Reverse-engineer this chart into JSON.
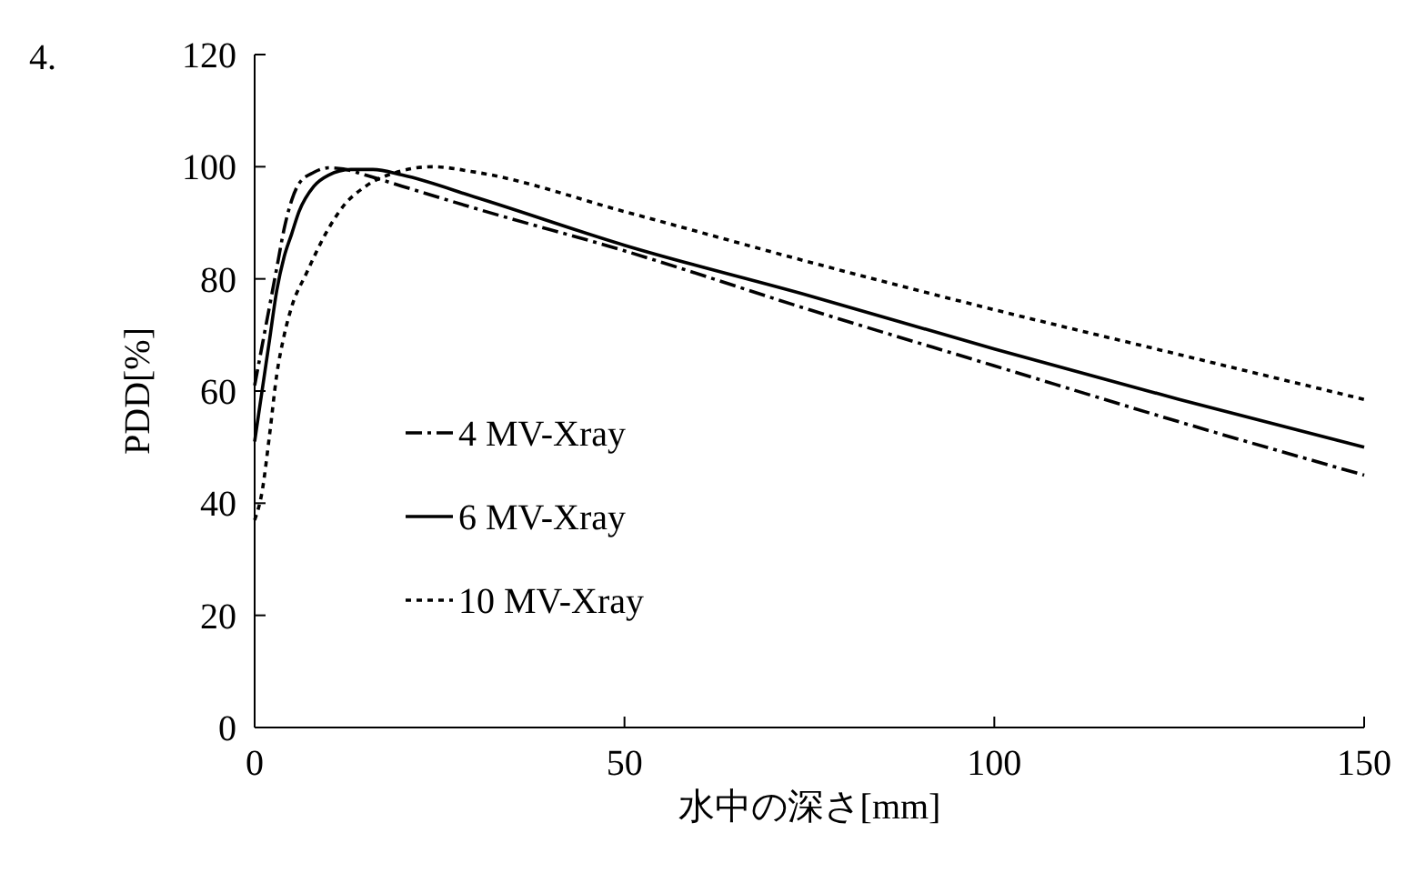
{
  "chart_data": {
    "type": "line",
    "title": "4.",
    "xlabel": "水中の深さ[mm]",
    "ylabel": "PDD[%]",
    "xlim": [
      0,
      150
    ],
    "xticks": [
      0,
      50,
      100,
      150
    ],
    "ylim": [
      0,
      120
    ],
    "yticks": [
      0,
      20,
      40,
      60,
      80,
      100,
      120
    ],
    "grid": false,
    "legend": "left",
    "marker": "none",
    "series": [
      {
        "name": "4 MV-Xray",
        "color": "#000000",
        "line_style": "dashdot",
        "x": [
          0,
          1,
          2,
          3,
          4,
          5,
          6,
          8,
          10,
          12,
          15,
          20,
          30,
          50,
          75,
          100,
          125,
          150
        ],
        "values": [
          61,
          68,
          75,
          82,
          89,
          94,
          97,
          99,
          99.8,
          99.6,
          98.5,
          96.5,
          92.5,
          85,
          74.5,
          64.5,
          54.5,
          45
        ]
      },
      {
        "name": "6 MV-Xray",
        "color": "#000000",
        "line_style": "solid",
        "x": [
          0,
          1,
          2,
          3,
          4,
          5,
          6,
          8,
          10,
          13,
          16,
          20,
          30,
          50,
          75,
          100,
          125,
          150
        ],
        "values": [
          51,
          60,
          69,
          78,
          84,
          88,
          92,
          96.5,
          98.5,
          99.5,
          99.5,
          98.5,
          94.5,
          86,
          77,
          67.5,
          58.5,
          50
        ]
      },
      {
        "name": "10 MV-Xray",
        "color": "#000000",
        "line_style": "dotted",
        "x": [
          0,
          1,
          2,
          3,
          4,
          5,
          7,
          10,
          12,
          15,
          20,
          24,
          30,
          50,
          75,
          100,
          125,
          150
        ],
        "values": [
          37,
          42,
          52,
          63,
          70,
          75,
          81,
          89,
          93,
          96.5,
          99.3,
          100,
          99,
          92,
          83,
          74.5,
          66.5,
          58.5
        ]
      }
    ]
  }
}
